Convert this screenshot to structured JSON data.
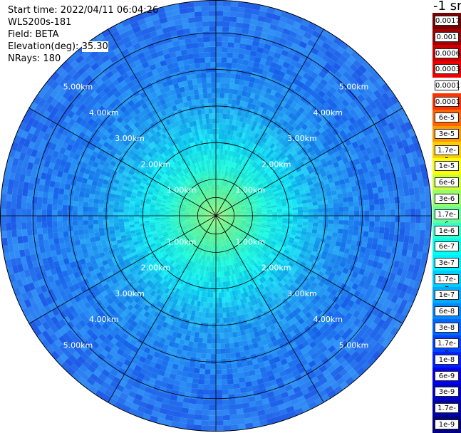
{
  "info": {
    "start_time": "Start time: 2022/04/11 06:04:26",
    "instrument": "WLS200s-181",
    "field": "Field: BETA",
    "elevation_label": "Elevation(deg):",
    "elevation_value": "35.30",
    "nrays": "NRays: 180"
  },
  "colorbar": {
    "title": "-1 sr",
    "labels": [
      "0.0017",
      "0.001",
      "0.0006",
      "0.0003",
      "0.00017",
      "0.0001",
      "6e-5",
      "3e-5",
      "1.7e-5",
      "1e-5",
      "6e-6",
      "3e-6",
      "1.7e-6",
      "1e-6",
      "6e-7",
      "3e-7",
      "1.7e-7",
      "1e-7",
      "6e-8",
      "3e-8",
      "1.7e-8",
      "1e-8",
      "6e-9",
      "3e-9",
      "1.7e-9",
      "1e-9"
    ],
    "colors": [
      "#7a0000",
      "#a00000",
      "#cc0000",
      "#ee0000",
      "#ffffff",
      "#ff3300",
      "#ff6600",
      "#ff9900",
      "#ffcc00",
      "#ffff00",
      "#ccff33",
      "#99ff66",
      "#66ff99",
      "#33ffcc",
      "#00ffee",
      "#00eeff",
      "#00ccff",
      "#00aaff",
      "#0088ff",
      "#0066ff",
      "#0044ff",
      "#0022ff",
      "#0000ee",
      "#0000cc",
      "#0000aa",
      "#000080"
    ]
  },
  "chart_data": {
    "type": "ppi-polar",
    "ring_labels": [
      "1.00km",
      "2.00km",
      "3.00km",
      "4.00km",
      "5.00km"
    ],
    "ring_ranges_km": [
      1,
      2,
      3,
      4,
      5
    ],
    "max_range_km": 5.9,
    "radial_line_count": 12,
    "nrays": 180,
    "range_gate_km": 0.07,
    "profile": [
      {
        "range_km": 0.0,
        "color": "#7cf26a"
      },
      {
        "range_km": 0.9,
        "color": "#3ef0b0"
      },
      {
        "range_km": 1.3,
        "color": "#1cf0d8"
      },
      {
        "range_km": 2.0,
        "color": "#10dcf0"
      },
      {
        "range_km": 2.6,
        "color": "#19b8f0"
      },
      {
        "range_km": 3.2,
        "color": "#1e96f0"
      },
      {
        "range_km": 4.3,
        "color": "#207af0"
      },
      {
        "range_km": 5.9,
        "color": "#2a74ee"
      }
    ]
  }
}
